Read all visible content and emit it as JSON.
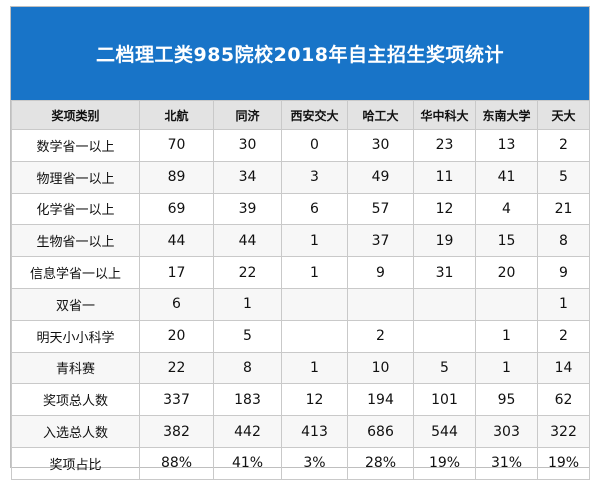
{
  "title": "二档理工类985院校2018年自主招生奖项统计",
  "columns": [
    "奖项类别",
    "北航",
    "同济",
    "西安交大",
    "哈工大",
    "华中科大",
    "东南大学",
    "天大"
  ],
  "rows": [
    [
      "数学省一以上",
      "70",
      "30",
      "0",
      "30",
      "23",
      "13",
      "2"
    ],
    [
      "物理省一以上",
      "89",
      "34",
      "3",
      "49",
      "11",
      "41",
      "5"
    ],
    [
      "化学省一以上",
      "69",
      "39",
      "6",
      "57",
      "12",
      "4",
      "21"
    ],
    [
      "生物省一以上",
      "44",
      "44",
      "1",
      "37",
      "19",
      "15",
      "8"
    ],
    [
      "信息学省一以上",
      "17",
      "22",
      "1",
      "9",
      "31",
      "20",
      "9"
    ],
    [
      "双省一",
      "6",
      "1",
      "",
      "",
      "",
      "",
      "1"
    ],
    [
      "明天小小科学",
      "20",
      "5",
      "",
      "2",
      "",
      "1",
      "2"
    ],
    [
      "青科赛",
      "22",
      "8",
      "1",
      "10",
      "5",
      "1",
      "14"
    ],
    [
      "奖项总人数",
      "337",
      "183",
      "12",
      "194",
      "101",
      "95",
      "62"
    ],
    [
      "入选总人数",
      "382",
      "442",
      "413",
      "686",
      "544",
      "303",
      "322"
    ],
    [
      "奖项占比",
      "88%",
      "41%",
      "3%",
      "28%",
      "19%",
      "31%",
      "19%"
    ]
  ]
}
